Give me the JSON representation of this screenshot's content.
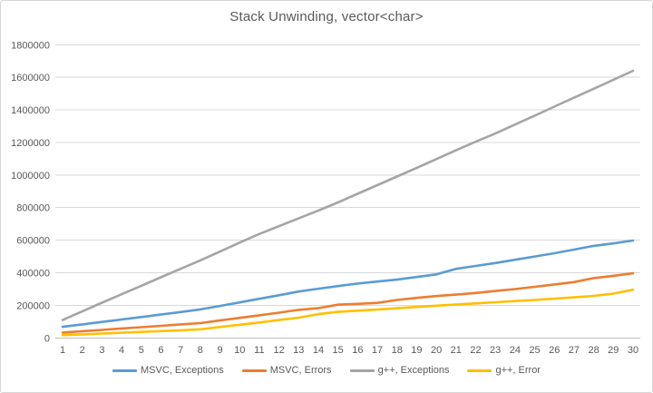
{
  "chart": {
    "title": "Stack Unwinding, vector<char>",
    "text_color": "#595959",
    "gridline_color": "#d9d9d9",
    "axis_line_color": "#bfbfbf"
  },
  "chart_data": {
    "type": "line",
    "title": "Stack Unwinding, vector<char>",
    "xlabel": "",
    "ylabel": "",
    "x": [
      1,
      2,
      3,
      4,
      5,
      6,
      7,
      8,
      9,
      10,
      11,
      12,
      13,
      14,
      15,
      16,
      17,
      18,
      19,
      20,
      21,
      22,
      23,
      24,
      25,
      26,
      27,
      28,
      29,
      30
    ],
    "ylim": [
      0,
      1800000
    ],
    "ytick_step": 200000,
    "grid": true,
    "legend_position": "bottom",
    "series": [
      {
        "name": "MSVC, Exceptions",
        "color": "#5B9BD5",
        "values": [
          68000,
          83000,
          98000,
          113000,
          128000,
          143000,
          159000,
          175000,
          196000,
          218000,
          240000,
          262000,
          285000,
          302000,
          318000,
          334000,
          346000,
          358000,
          374000,
          390000,
          424000,
          442000,
          460000,
          480000,
          500000,
          520000,
          542000,
          565000,
          580000,
          598000
        ]
      },
      {
        "name": "MSVC, Errors",
        "color": "#ED7D31",
        "values": [
          33000,
          41000,
          49000,
          58000,
          66000,
          74000,
          83000,
          91000,
          107000,
          123000,
          139000,
          155000,
          172000,
          183000,
          204000,
          209000,
          215000,
          233000,
          246000,
          257000,
          266000,
          276000,
          288000,
          300000,
          314000,
          328000,
          343000,
          367000,
          381000,
          397000
        ]
      },
      {
        "name": "g++, Exceptions",
        "color": "#A5A5A5",
        "values": [
          110000,
          163000,
          216000,
          268000,
          320000,
          372000,
          424000,
          476000,
          530000,
          585000,
          638000,
          686000,
          734000,
          782000,
          832000,
          885000,
          938000,
          991000,
          1044000,
          1098000,
          1152000,
          1205000,
          1255000,
          1310000,
          1365000,
          1420000,
          1475000,
          1530000,
          1585000,
          1640000
        ]
      },
      {
        "name": "g++, Error",
        "color": "#FFC000",
        "values": [
          17000,
          22000,
          27000,
          32000,
          37000,
          42000,
          47000,
          53000,
          67000,
          81000,
          95000,
          110000,
          124000,
          146000,
          160000,
          167000,
          174000,
          182000,
          190000,
          198000,
          205000,
          212000,
          219000,
          226000,
          233000,
          241000,
          249000,
          258000,
          272000,
          296000
        ]
      }
    ]
  }
}
